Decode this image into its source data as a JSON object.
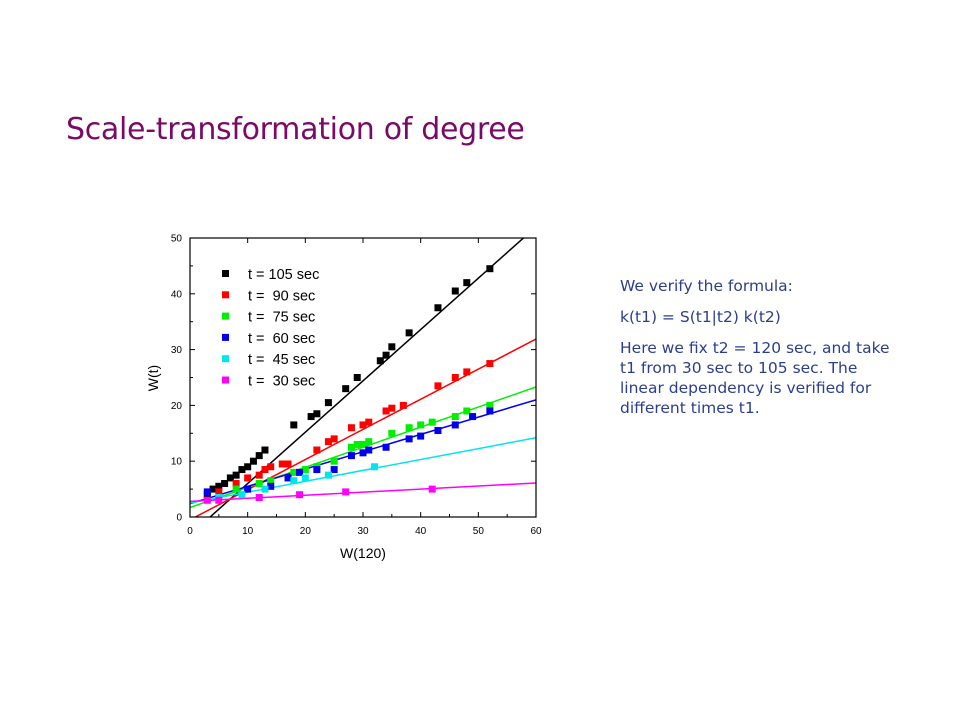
{
  "slide": {
    "title": "Scale-transformation of degree",
    "paragraphs": [
      "We verify the formula:",
      "k(t1) = S(t1|t2) k(t2)",
      "Here we fix t2 = 120 sec, and take t1 from 30 sec to 105 sec. The linear dependency is verified for different times t1."
    ]
  },
  "chart_data": {
    "type": "scatter",
    "title": "",
    "xlabel": "W(120)",
    "ylabel": "W(t)",
    "xlim": [
      0,
      60
    ],
    "ylim": [
      0,
      50
    ],
    "xticks": [
      0,
      10,
      20,
      30,
      40,
      50,
      60
    ],
    "yticks": [
      0,
      10,
      20,
      30,
      40,
      50
    ],
    "grid": false,
    "legend_position": "top-left",
    "series": [
      {
        "name": "t = 105 sec",
        "color": "#000000",
        "fit": {
          "intercept": -3.2,
          "slope": 0.92
        },
        "x": [
          3,
          4,
          5,
          6,
          7,
          8,
          9,
          10,
          11,
          12,
          13,
          18,
          21,
          22,
          24,
          27,
          29,
          33,
          34,
          35,
          38,
          43,
          46,
          48,
          52
        ],
        "y": [
          4,
          5,
          5.5,
          6,
          7,
          7.5,
          8.5,
          9,
          10,
          11,
          12,
          16.5,
          18,
          18.5,
          20.5,
          23,
          25,
          28,
          29,
          30.5,
          33,
          37.5,
          40.5,
          42,
          44.5
        ]
      },
      {
        "name": "t =  90 sec",
        "color": "#ff0000",
        "fit": {
          "intercept": -0.5,
          "slope": 0.54
        },
        "x": [
          5,
          8,
          10,
          12,
          13,
          14,
          16,
          17,
          22,
          24,
          25,
          28,
          30,
          31,
          34,
          35,
          37,
          43,
          46,
          48,
          52
        ],
        "y": [
          4.5,
          6,
          7,
          7.5,
          8.5,
          9,
          9.5,
          9.5,
          12,
          13.5,
          14,
          16,
          16.5,
          17,
          19,
          19.5,
          20,
          23.5,
          25,
          26,
          27.5
        ]
      },
      {
        "name": "t =  75 sec",
        "color": "#00ee00",
        "fit": {
          "intercept": 1.7,
          "slope": 0.36
        },
        "x": [
          8,
          12,
          14,
          18,
          20,
          22,
          25,
          28,
          29,
          30,
          31,
          35,
          38,
          40,
          42,
          46,
          48,
          52
        ],
        "y": [
          5,
          6,
          6.5,
          8,
          8.5,
          9,
          10,
          12.5,
          13,
          13,
          13.5,
          15,
          16,
          16.5,
          17,
          18,
          19,
          20
        ]
      },
      {
        "name": "t =  60 sec",
        "color": "#0000ee",
        "fit": {
          "intercept": 2.4,
          "slope": 0.31
        },
        "x": [
          3,
          10,
          14,
          17,
          19,
          22,
          25,
          28,
          30,
          31,
          34,
          38,
          40,
          43,
          46,
          49,
          52
        ],
        "y": [
          4.5,
          5,
          5.5,
          7,
          8,
          8.5,
          8.5,
          11,
          11.5,
          12,
          12.5,
          14,
          14.5,
          15.5,
          16.5,
          18,
          19
        ]
      },
      {
        "name": "t =  45 sec",
        "color": "#00e5ee",
        "fit": {
          "intercept": 2.5,
          "slope": 0.195
        },
        "x": [
          5,
          9,
          13,
          18,
          20,
          24,
          32
        ],
        "y": [
          3.5,
          4,
          5,
          6.5,
          7,
          7.5,
          9
        ]
      },
      {
        "name": "t =  30 sec",
        "color": "#ff00ff",
        "fit": {
          "intercept": 2.8,
          "slope": 0.055
        },
        "x": [
          3,
          5,
          12,
          19,
          27,
          42
        ],
        "y": [
          3,
          3,
          3.5,
          4,
          4.5,
          5
        ]
      }
    ]
  }
}
